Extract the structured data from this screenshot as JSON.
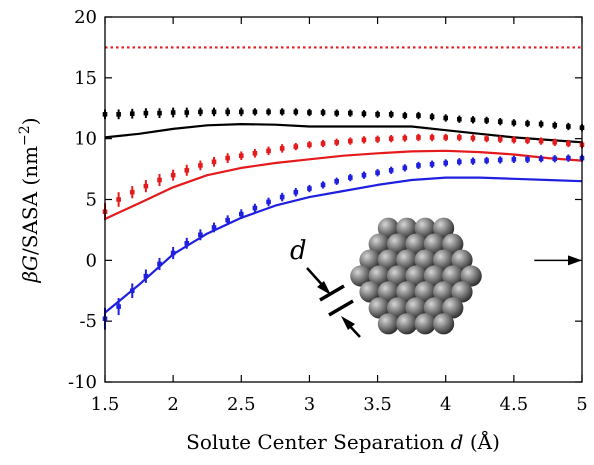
{
  "chart_data": {
    "type": "line",
    "xlabel": "Solute Center Separation d (Å)",
    "xlabel_parts": {
      "prefix": "Solute Center Separation ",
      "var": "d",
      "suffix": " (Å)"
    },
    "ylabel": "βG/SASA (nm⁻²)",
    "ylabel_parts": {
      "beta": "β",
      "G": "G",
      "rest": "/SASA (nm",
      "sup": "−2",
      "close": ")"
    },
    "xlim": [
      1.5,
      5.0
    ],
    "ylim": [
      -10,
      20
    ],
    "x_ticks": [
      1.5,
      2,
      2.5,
      3,
      3.5,
      4,
      4.5,
      5
    ],
    "x_tick_labels": [
      "1.5",
      "2",
      "2.5",
      "3",
      "3.5",
      "4",
      "4.5",
      "5"
    ],
    "y_ticks": [
      -10,
      -5,
      0,
      5,
      10,
      15,
      20
    ],
    "y_tick_labels": [
      "-10",
      "-5",
      "0",
      "5",
      "10",
      "15",
      "20"
    ],
    "grid": false,
    "inset_label": "d",
    "reference_line": {
      "y": 17.5,
      "color": "#e41a1c",
      "style": "dotted"
    },
    "arrow_annotation": {
      "y": 0,
      "x_from": 4.65,
      "x_to": 5.0
    },
    "series": [
      {
        "color": "#000000",
        "line": {
          "x": [
            1.5,
            1.75,
            2.0,
            2.25,
            2.5,
            2.75,
            3.0,
            3.25,
            3.5,
            3.75,
            4.0,
            4.25,
            4.5,
            4.75,
            5.0
          ],
          "y": [
            10.1,
            10.4,
            10.8,
            11.1,
            11.2,
            11.15,
            11.0,
            11.0,
            11.0,
            11.0,
            10.7,
            10.4,
            10.1,
            9.9,
            9.7
          ]
        },
        "points": {
          "x": [
            1.5,
            1.6,
            1.7,
            1.8,
            1.9,
            2.0,
            2.1,
            2.2,
            2.3,
            2.4,
            2.5,
            2.6,
            2.7,
            2.8,
            2.9,
            3.0,
            3.1,
            3.2,
            3.3,
            3.4,
            3.5,
            3.6,
            3.7,
            3.8,
            3.9,
            4.0,
            4.1,
            4.2,
            4.3,
            4.4,
            4.5,
            4.6,
            4.7,
            4.8,
            4.9,
            5.0
          ],
          "y": [
            12.0,
            12.0,
            12.05,
            12.1,
            12.1,
            12.15,
            12.15,
            12.2,
            12.2,
            12.2,
            12.2,
            12.2,
            12.2,
            12.2,
            12.2,
            12.15,
            12.15,
            12.1,
            12.1,
            12.05,
            12.0,
            12.0,
            11.9,
            11.9,
            11.8,
            11.7,
            11.6,
            11.55,
            11.5,
            11.4,
            11.3,
            11.25,
            11.2,
            11.1,
            11.0,
            10.9
          ],
          "err": [
            0.4,
            0.4,
            0.4,
            0.4,
            0.4,
            0.4,
            0.4,
            0.35,
            0.35,
            0.35,
            0.35,
            0.3,
            0.3,
            0.3,
            0.3,
            0.3,
            0.3,
            0.3,
            0.3,
            0.3,
            0.3,
            0.3,
            0.3,
            0.3,
            0.3,
            0.3,
            0.3,
            0.3,
            0.3,
            0.3,
            0.3,
            0.3,
            0.3,
            0.3,
            0.3,
            0.3
          ]
        }
      },
      {
        "color": "#e41a1c",
        "line": {
          "x": [
            1.5,
            1.75,
            2.0,
            2.25,
            2.5,
            2.75,
            3.0,
            3.25,
            3.5,
            3.75,
            4.0,
            4.25,
            4.5,
            4.75,
            5.0
          ],
          "y": [
            3.4,
            4.7,
            6.0,
            7.0,
            7.6,
            8.0,
            8.3,
            8.6,
            8.8,
            8.95,
            9.0,
            8.9,
            8.7,
            8.4,
            8.2
          ]
        },
        "points": {
          "x": [
            1.5,
            1.6,
            1.7,
            1.8,
            1.9,
            2.0,
            2.1,
            2.2,
            2.3,
            2.4,
            2.5,
            2.6,
            2.7,
            2.8,
            2.9,
            3.0,
            3.1,
            3.2,
            3.3,
            3.4,
            3.5,
            3.6,
            3.7,
            3.8,
            3.9,
            4.0,
            4.1,
            4.2,
            4.3,
            4.4,
            4.5,
            4.6,
            4.7,
            4.8,
            4.9,
            5.0
          ],
          "y": [
            4.0,
            5.0,
            5.6,
            6.1,
            6.6,
            7.0,
            7.4,
            7.8,
            8.1,
            8.4,
            8.6,
            8.8,
            9.0,
            9.2,
            9.35,
            9.5,
            9.6,
            9.7,
            9.8,
            9.9,
            9.95,
            10.0,
            10.05,
            10.1,
            10.1,
            10.1,
            10.1,
            10.05,
            10.0,
            9.95,
            9.9,
            9.85,
            9.8,
            9.7,
            9.6,
            9.5
          ],
          "err": [
            0.7,
            0.6,
            0.5,
            0.5,
            0.5,
            0.45,
            0.45,
            0.4,
            0.4,
            0.4,
            0.35,
            0.35,
            0.35,
            0.35,
            0.3,
            0.3,
            0.3,
            0.3,
            0.3,
            0.3,
            0.3,
            0.3,
            0.3,
            0.3,
            0.3,
            0.3,
            0.3,
            0.3,
            0.3,
            0.3,
            0.3,
            0.3,
            0.3,
            0.3,
            0.3,
            0.3
          ]
        }
      },
      {
        "color": "#1f1fe0",
        "line": {
          "x": [
            1.5,
            1.75,
            2.0,
            2.25,
            2.5,
            2.75,
            3.0,
            3.25,
            3.5,
            3.75,
            4.0,
            4.25,
            4.5,
            4.75,
            5.0
          ],
          "y": [
            -4.3,
            -2.0,
            0.5,
            2.2,
            3.5,
            4.5,
            5.2,
            5.7,
            6.2,
            6.6,
            6.8,
            6.8,
            6.7,
            6.6,
            6.5
          ]
        },
        "points": {
          "x": [
            1.5,
            1.6,
            1.7,
            1.8,
            1.9,
            2.0,
            2.1,
            2.2,
            2.3,
            2.4,
            2.5,
            2.6,
            2.7,
            2.8,
            2.9,
            3.0,
            3.1,
            3.2,
            3.3,
            3.4,
            3.5,
            3.6,
            3.7,
            3.8,
            3.9,
            4.0,
            4.1,
            4.2,
            4.3,
            4.4,
            4.5,
            4.6,
            4.7,
            4.8,
            4.9,
            5.0
          ],
          "y": [
            -4.8,
            -3.8,
            -2.5,
            -1.3,
            -0.3,
            0.6,
            1.4,
            2.1,
            2.7,
            3.3,
            3.8,
            4.3,
            4.8,
            5.2,
            5.6,
            5.9,
            6.2,
            6.5,
            6.8,
            7.0,
            7.2,
            7.4,
            7.6,
            7.8,
            7.9,
            8.0,
            8.1,
            8.15,
            8.2,
            8.25,
            8.3,
            8.3,
            8.35,
            8.35,
            8.4,
            8.4
          ],
          "err": [
            0.9,
            0.7,
            0.6,
            0.55,
            0.5,
            0.5,
            0.45,
            0.45,
            0.4,
            0.4,
            0.4,
            0.35,
            0.35,
            0.35,
            0.35,
            0.3,
            0.3,
            0.3,
            0.3,
            0.3,
            0.3,
            0.3,
            0.3,
            0.3,
            0.3,
            0.3,
            0.3,
            0.3,
            0.3,
            0.3,
            0.3,
            0.3,
            0.3,
            0.3,
            0.3,
            0.3
          ]
        }
      }
    ]
  }
}
